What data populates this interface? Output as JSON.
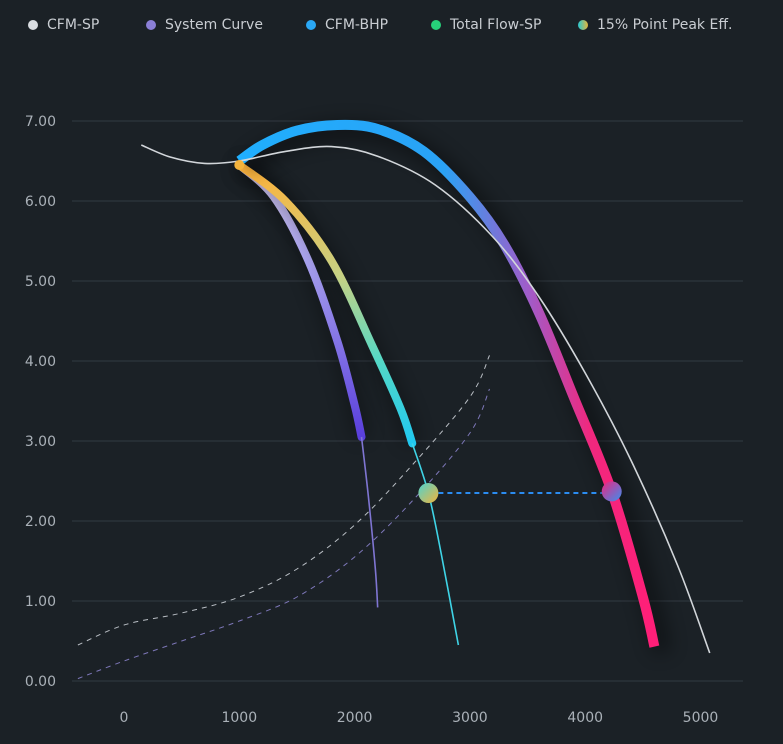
{
  "legend": [
    {
      "label": "CFM-SP",
      "color": "#d9dde1"
    },
    {
      "label": "System Curve",
      "color": "#8b7fd6"
    },
    {
      "label": "CFM-BHP",
      "color": "#2aa8f5"
    },
    {
      "label": "Total Flow-SP",
      "color": "#27d07a"
    },
    {
      "label": "15%  Point Peak Eff.",
      "color": "gradient:#27c9d4-#e7b53a"
    }
  ],
  "chart_data": {
    "type": "line",
    "xlim": [
      -400,
      5400
    ],
    "ylim": [
      0,
      7
    ],
    "xticks": [
      0,
      1000,
      2000,
      3000,
      4000,
      5000
    ],
    "xtick_labels": [
      "0",
      "1000",
      "2000",
      "3000",
      "4000",
      "5000"
    ],
    "yticks": [
      0,
      1,
      2,
      3,
      4,
      5,
      6,
      7
    ],
    "ytick_labels": [
      "0.00",
      "1.00",
      "2.00",
      "3.00",
      "4.00",
      "5.00",
      "6.00",
      "7.00"
    ],
    "grid": "horizontal",
    "legend_position": "top",
    "series": [
      {
        "name": "CFM-SP",
        "points": [
          [
            150,
            6.7
          ],
          [
            400,
            6.55
          ],
          [
            700,
            6.47
          ],
          [
            1000,
            6.5
          ],
          [
            1400,
            6.62
          ],
          [
            1800,
            6.68
          ],
          [
            2200,
            6.56
          ],
          [
            2700,
            6.2
          ],
          [
            3200,
            5.55
          ],
          [
            3600,
            4.8
          ],
          [
            4000,
            3.85
          ],
          [
            4400,
            2.75
          ],
          [
            4800,
            1.45
          ],
          [
            5080,
            0.35
          ]
        ]
      },
      {
        "name": "CFM-BHP",
        "points": [
          [
            1000,
            6.5
          ],
          [
            1200,
            6.7
          ],
          [
            1500,
            6.88
          ],
          [
            1850,
            6.95
          ],
          [
            2200,
            6.9
          ],
          [
            2600,
            6.62
          ],
          [
            3000,
            6.05
          ],
          [
            3300,
            5.45
          ],
          [
            3600,
            4.6
          ],
          [
            3900,
            3.55
          ],
          [
            4230,
            2.37
          ],
          [
            4500,
            1.05
          ],
          [
            4600,
            0.43
          ]
        ]
      },
      {
        "name": "System Curve",
        "points": [
          [
            1000,
            6.45
          ],
          [
            1300,
            6.05
          ],
          [
            1600,
            5.25
          ],
          [
            1850,
            4.25
          ],
          [
            2000,
            3.45
          ],
          [
            2060,
            3.05
          ],
          [
            2120,
            2.3
          ],
          [
            2180,
            1.4
          ],
          [
            2200,
            0.92
          ]
        ]
      },
      {
        "name": "Total Flow-SP",
        "points": [
          [
            1000,
            6.45
          ],
          [
            1400,
            6.0
          ],
          [
            1800,
            5.25
          ],
          [
            2150,
            4.2
          ],
          [
            2400,
            3.4
          ],
          [
            2500,
            2.97
          ],
          [
            2640,
            2.35
          ],
          [
            2750,
            1.6
          ],
          [
            2900,
            0.45
          ]
        ]
      },
      {
        "name": "Upper dashed",
        "points": [
          [
            -400,
            0.45
          ],
          [
            0,
            0.7
          ],
          [
            500,
            0.85
          ],
          [
            1000,
            1.05
          ],
          [
            1500,
            1.4
          ],
          [
            2000,
            1.95
          ],
          [
            2500,
            2.7
          ],
          [
            3000,
            3.55
          ],
          [
            3170,
            4.07
          ]
        ]
      },
      {
        "name": "Lower dashed",
        "points": [
          [
            -400,
            0.03
          ],
          [
            0,
            0.25
          ],
          [
            500,
            0.5
          ],
          [
            1000,
            0.75
          ],
          [
            1500,
            1.05
          ],
          [
            2000,
            1.55
          ],
          [
            2500,
            2.25
          ],
          [
            3000,
            3.1
          ],
          [
            3170,
            3.65
          ]
        ]
      }
    ],
    "markers": [
      {
        "x": 2640,
        "y": 2.35
      },
      {
        "x": 4230,
        "y": 2.37
      }
    ],
    "reference_line": {
      "from": [
        2640,
        2.35
      ],
      "to": [
        4230,
        2.37
      ]
    }
  }
}
